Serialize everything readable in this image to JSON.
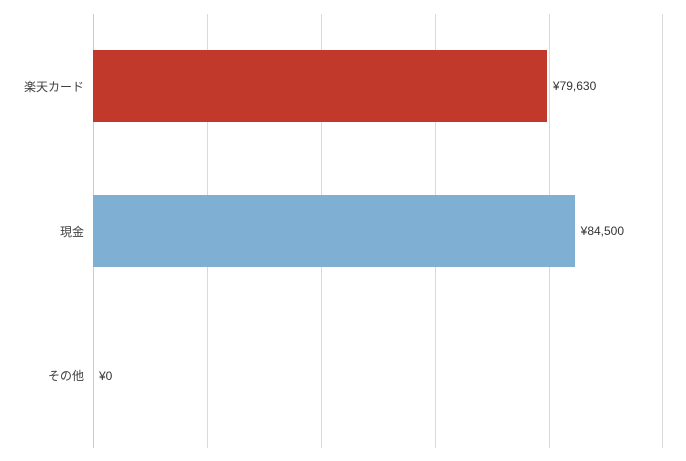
{
  "chart_data": {
    "type": "bar",
    "orientation": "horizontal",
    "title": "",
    "xlabel": "",
    "ylabel": "",
    "categories": [
      "楽天カード",
      "現金",
      "その他"
    ],
    "values": [
      79630,
      84500,
      0
    ],
    "value_labels": [
      "¥79,630",
      "¥84,500",
      "¥0"
    ],
    "bar_colors": [
      "#c0392b",
      "#7fafd2",
      "#7fafd2"
    ],
    "xlim": [
      0,
      100000
    ],
    "grid_step": 20000,
    "grid": true,
    "legend": false,
    "gridline_color": "#d9d9d9",
    "axis_line_color": "#cccccc",
    "label_color": "#404040",
    "background": "#ffffff"
  }
}
